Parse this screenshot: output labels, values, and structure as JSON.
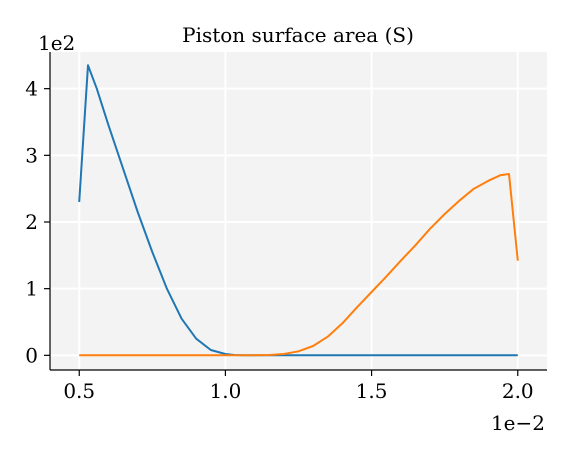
{
  "chart_data": {
    "type": "line",
    "title": "Piston surface area (S)",
    "xlabel": "",
    "ylabel": "",
    "x_multiplier": "1e−2",
    "y_multiplier": "1e2",
    "xlim": [
      0.4,
      2.1
    ],
    "ylim": [
      -0.22,
      4.55
    ],
    "xticks": [
      0.5,
      1.0,
      1.5,
      2.0
    ],
    "xtick_labels": [
      "0.5",
      "1.0",
      "1.5",
      "2.0"
    ],
    "yticks": [
      0,
      1,
      2,
      3,
      4
    ],
    "ytick_labels": [
      "0",
      "1",
      "2",
      "3",
      "4"
    ],
    "grid": true,
    "legend": "none",
    "colors": {
      "plot_bg": "#f3f3f3",
      "grid": "#ffffff",
      "axis": "#000000"
    },
    "series": [
      {
        "color": "#1f77b4",
        "x": [
          0.5,
          0.53,
          0.56,
          0.6,
          0.65,
          0.7,
          0.75,
          0.8,
          0.85,
          0.9,
          0.95,
          1.0,
          1.03,
          1.06,
          1.1,
          1.2,
          1.4,
          1.6,
          1.8,
          2.0
        ],
        "y": [
          2.3,
          4.35,
          4.0,
          3.45,
          2.8,
          2.15,
          1.55,
          1.0,
          0.55,
          0.25,
          0.08,
          0.02,
          0.005,
          0.0,
          0.0,
          0.0,
          0.0,
          0.0,
          0.0,
          0.0
        ]
      },
      {
        "color": "#ff7f0e",
        "x": [
          0.5,
          0.7,
          0.9,
          1.0,
          1.1,
          1.15,
          1.2,
          1.25,
          1.3,
          1.35,
          1.4,
          1.45,
          1.5,
          1.55,
          1.6,
          1.65,
          1.7,
          1.75,
          1.8,
          1.85,
          1.9,
          1.94,
          1.97,
          2.0
        ],
        "y": [
          0.0,
          0.0,
          0.0,
          0.0,
          0.0,
          0.005,
          0.02,
          0.06,
          0.14,
          0.28,
          0.48,
          0.72,
          0.95,
          1.18,
          1.42,
          1.65,
          1.9,
          2.12,
          2.32,
          2.5,
          2.62,
          2.7,
          2.72,
          1.42
        ]
      }
    ]
  }
}
